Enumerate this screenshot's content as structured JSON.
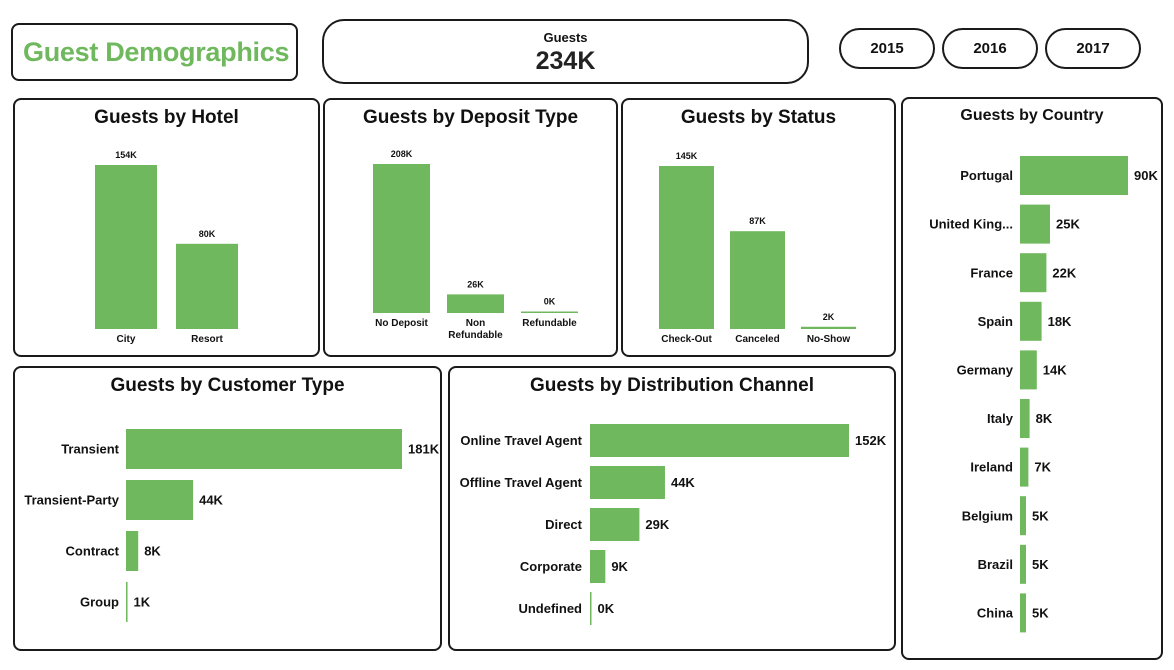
{
  "title": "Guest Demographics",
  "kpi": {
    "label": "Guests",
    "value": "234K"
  },
  "years": [
    "2015",
    "2016",
    "2017"
  ],
  "colors": {
    "bar": "#70b85e",
    "title": "#70b85e",
    "border": "#1a1a1a"
  },
  "chart_data": [
    {
      "id": "hotel",
      "type": "bar",
      "title": "Guests by Hotel",
      "categories": [
        "City",
        "Resort"
      ],
      "values": [
        154,
        80
      ],
      "labels": [
        "154K",
        "80K"
      ],
      "unit": "K"
    },
    {
      "id": "deposit",
      "type": "bar",
      "title": "Guests by Deposit Type",
      "categories": [
        "No Deposit",
        "Non Refundable",
        "Refundable"
      ],
      "values": [
        208,
        26,
        0
      ],
      "labels": [
        "208K",
        "26K",
        "0K"
      ],
      "unit": "K"
    },
    {
      "id": "status",
      "type": "bar",
      "title": "Guests by Status",
      "categories": [
        "Check-Out",
        "Canceled",
        "No-Show"
      ],
      "values": [
        145,
        87,
        2
      ],
      "labels": [
        "145K",
        "87K",
        "2K"
      ],
      "unit": "K"
    },
    {
      "id": "country",
      "type": "bar",
      "orientation": "horizontal",
      "title": "Guests by Country",
      "categories": [
        "Portugal",
        "United King...",
        "France",
        "Spain",
        "Germany",
        "Italy",
        "Ireland",
        "Belgium",
        "Brazil",
        "China"
      ],
      "values": [
        90,
        25,
        22,
        18,
        14,
        8,
        7,
        5,
        5,
        5
      ],
      "labels": [
        "90K",
        "25K",
        "22K",
        "18K",
        "14K",
        "8K",
        "7K",
        "5K",
        "5K",
        "5K"
      ],
      "unit": "K"
    },
    {
      "id": "customer",
      "type": "bar",
      "orientation": "horizontal",
      "title": "Guests by Customer Type",
      "categories": [
        "Transient",
        "Transient-Party",
        "Contract",
        "Group"
      ],
      "values": [
        181,
        44,
        8,
        1
      ],
      "labels": [
        "181K",
        "44K",
        "8K",
        "1K"
      ],
      "unit": "K"
    },
    {
      "id": "channel",
      "type": "bar",
      "orientation": "horizontal",
      "title": "Guests by Distribution Channel",
      "categories": [
        "Online Travel Agent",
        "Offline Travel Agent",
        "Direct",
        "Corporate",
        "Undefined"
      ],
      "values": [
        152,
        44,
        29,
        9,
        0
      ],
      "labels": [
        "152K",
        "44K",
        "29K",
        "9K",
        "0K"
      ],
      "unit": "K"
    }
  ]
}
